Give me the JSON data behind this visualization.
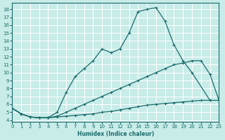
{
  "xlabel": "Humidex (Indice chaleur)",
  "bg_color": "#c8ece8",
  "grid_color": "#ffffff",
  "line_color": "#1a6b6b",
  "xlim": [
    0,
    23
  ],
  "ylim": [
    3.8,
    18.8
  ],
  "xticks": [
    0,
    1,
    2,
    3,
    4,
    5,
    6,
    7,
    8,
    9,
    10,
    11,
    12,
    13,
    14,
    15,
    16,
    17,
    18,
    19,
    20,
    21,
    22,
    23
  ],
  "yticks": [
    4,
    5,
    6,
    7,
    8,
    9,
    10,
    11,
    12,
    13,
    14,
    15,
    16,
    17,
    18
  ],
  "curve1_x": [
    0,
    1,
    2,
    3,
    4,
    5,
    6,
    7,
    8,
    9,
    10,
    11,
    12,
    13,
    14,
    15,
    16,
    17,
    18,
    19,
    20,
    22
  ],
  "curve1_y": [
    5.5,
    4.8,
    4.4,
    4.3,
    4.3,
    5.0,
    7.5,
    9.5,
    10.5,
    11.5,
    13.0,
    12.5,
    13.0,
    15.0,
    17.7,
    18.0,
    18.2,
    16.5,
    13.5,
    11.5,
    10.0,
    6.5
  ],
  "curve2_x": [
    0,
    1,
    2,
    3,
    4,
    5,
    6,
    7,
    8,
    9,
    10,
    11,
    12,
    13,
    14,
    15,
    16,
    17,
    18,
    19,
    20,
    21,
    22,
    23
  ],
  "curve2_y": [
    5.5,
    4.8,
    4.4,
    4.3,
    4.3,
    4.5,
    5.0,
    5.5,
    6.0,
    6.5,
    7.0,
    7.5,
    8.0,
    8.5,
    9.0,
    9.5,
    10.0,
    10.5,
    11.0,
    11.2,
    11.5,
    11.5,
    9.8,
    6.5
  ],
  "curve3_x": [
    0,
    1,
    2,
    3,
    4,
    5,
    6,
    7,
    8,
    9,
    10,
    11,
    12,
    13,
    14,
    15,
    16,
    17,
    18,
    19,
    20,
    21,
    22,
    23
  ],
  "curve3_y": [
    5.5,
    4.8,
    4.4,
    4.3,
    4.3,
    4.4,
    4.5,
    4.6,
    4.7,
    4.8,
    5.0,
    5.1,
    5.3,
    5.5,
    5.7,
    5.9,
    6.0,
    6.1,
    6.2,
    6.3,
    6.4,
    6.5,
    6.5,
    6.5
  ]
}
